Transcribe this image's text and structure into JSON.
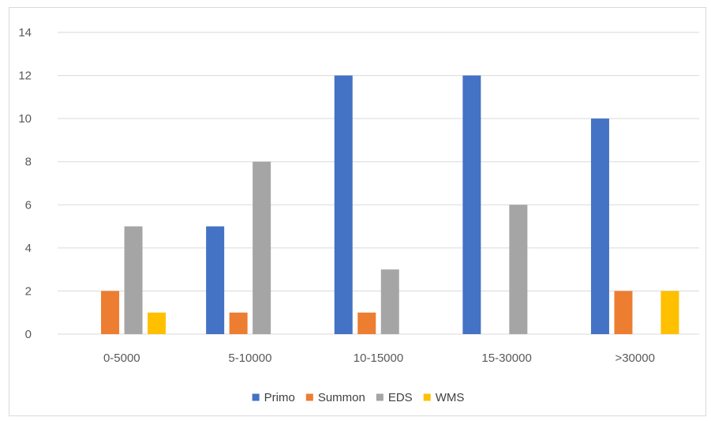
{
  "chart_data": {
    "type": "bar",
    "title": "",
    "xlabel": "",
    "ylabel": "",
    "categories": [
      "0-5000",
      "5-10000",
      "10-15000",
      "15-30000",
      ">30000"
    ],
    "ylim": [
      0,
      14
    ],
    "yticks": [
      0,
      2,
      4,
      6,
      8,
      10,
      12,
      14
    ],
    "grid": true,
    "legend_position": "bottom",
    "series": [
      {
        "name": "Primo",
        "color": "#4472c4",
        "values": [
          0,
          5,
          12,
          12,
          10
        ]
      },
      {
        "name": "Summon",
        "color": "#ed7d31",
        "values": [
          2,
          1,
          1,
          0,
          2
        ]
      },
      {
        "name": "EDS",
        "color": "#a5a5a5",
        "values": [
          5,
          8,
          3,
          6,
          0
        ]
      },
      {
        "name": "WMS",
        "color": "#ffc000",
        "values": [
          1,
          0,
          0,
          0,
          2
        ]
      }
    ]
  }
}
